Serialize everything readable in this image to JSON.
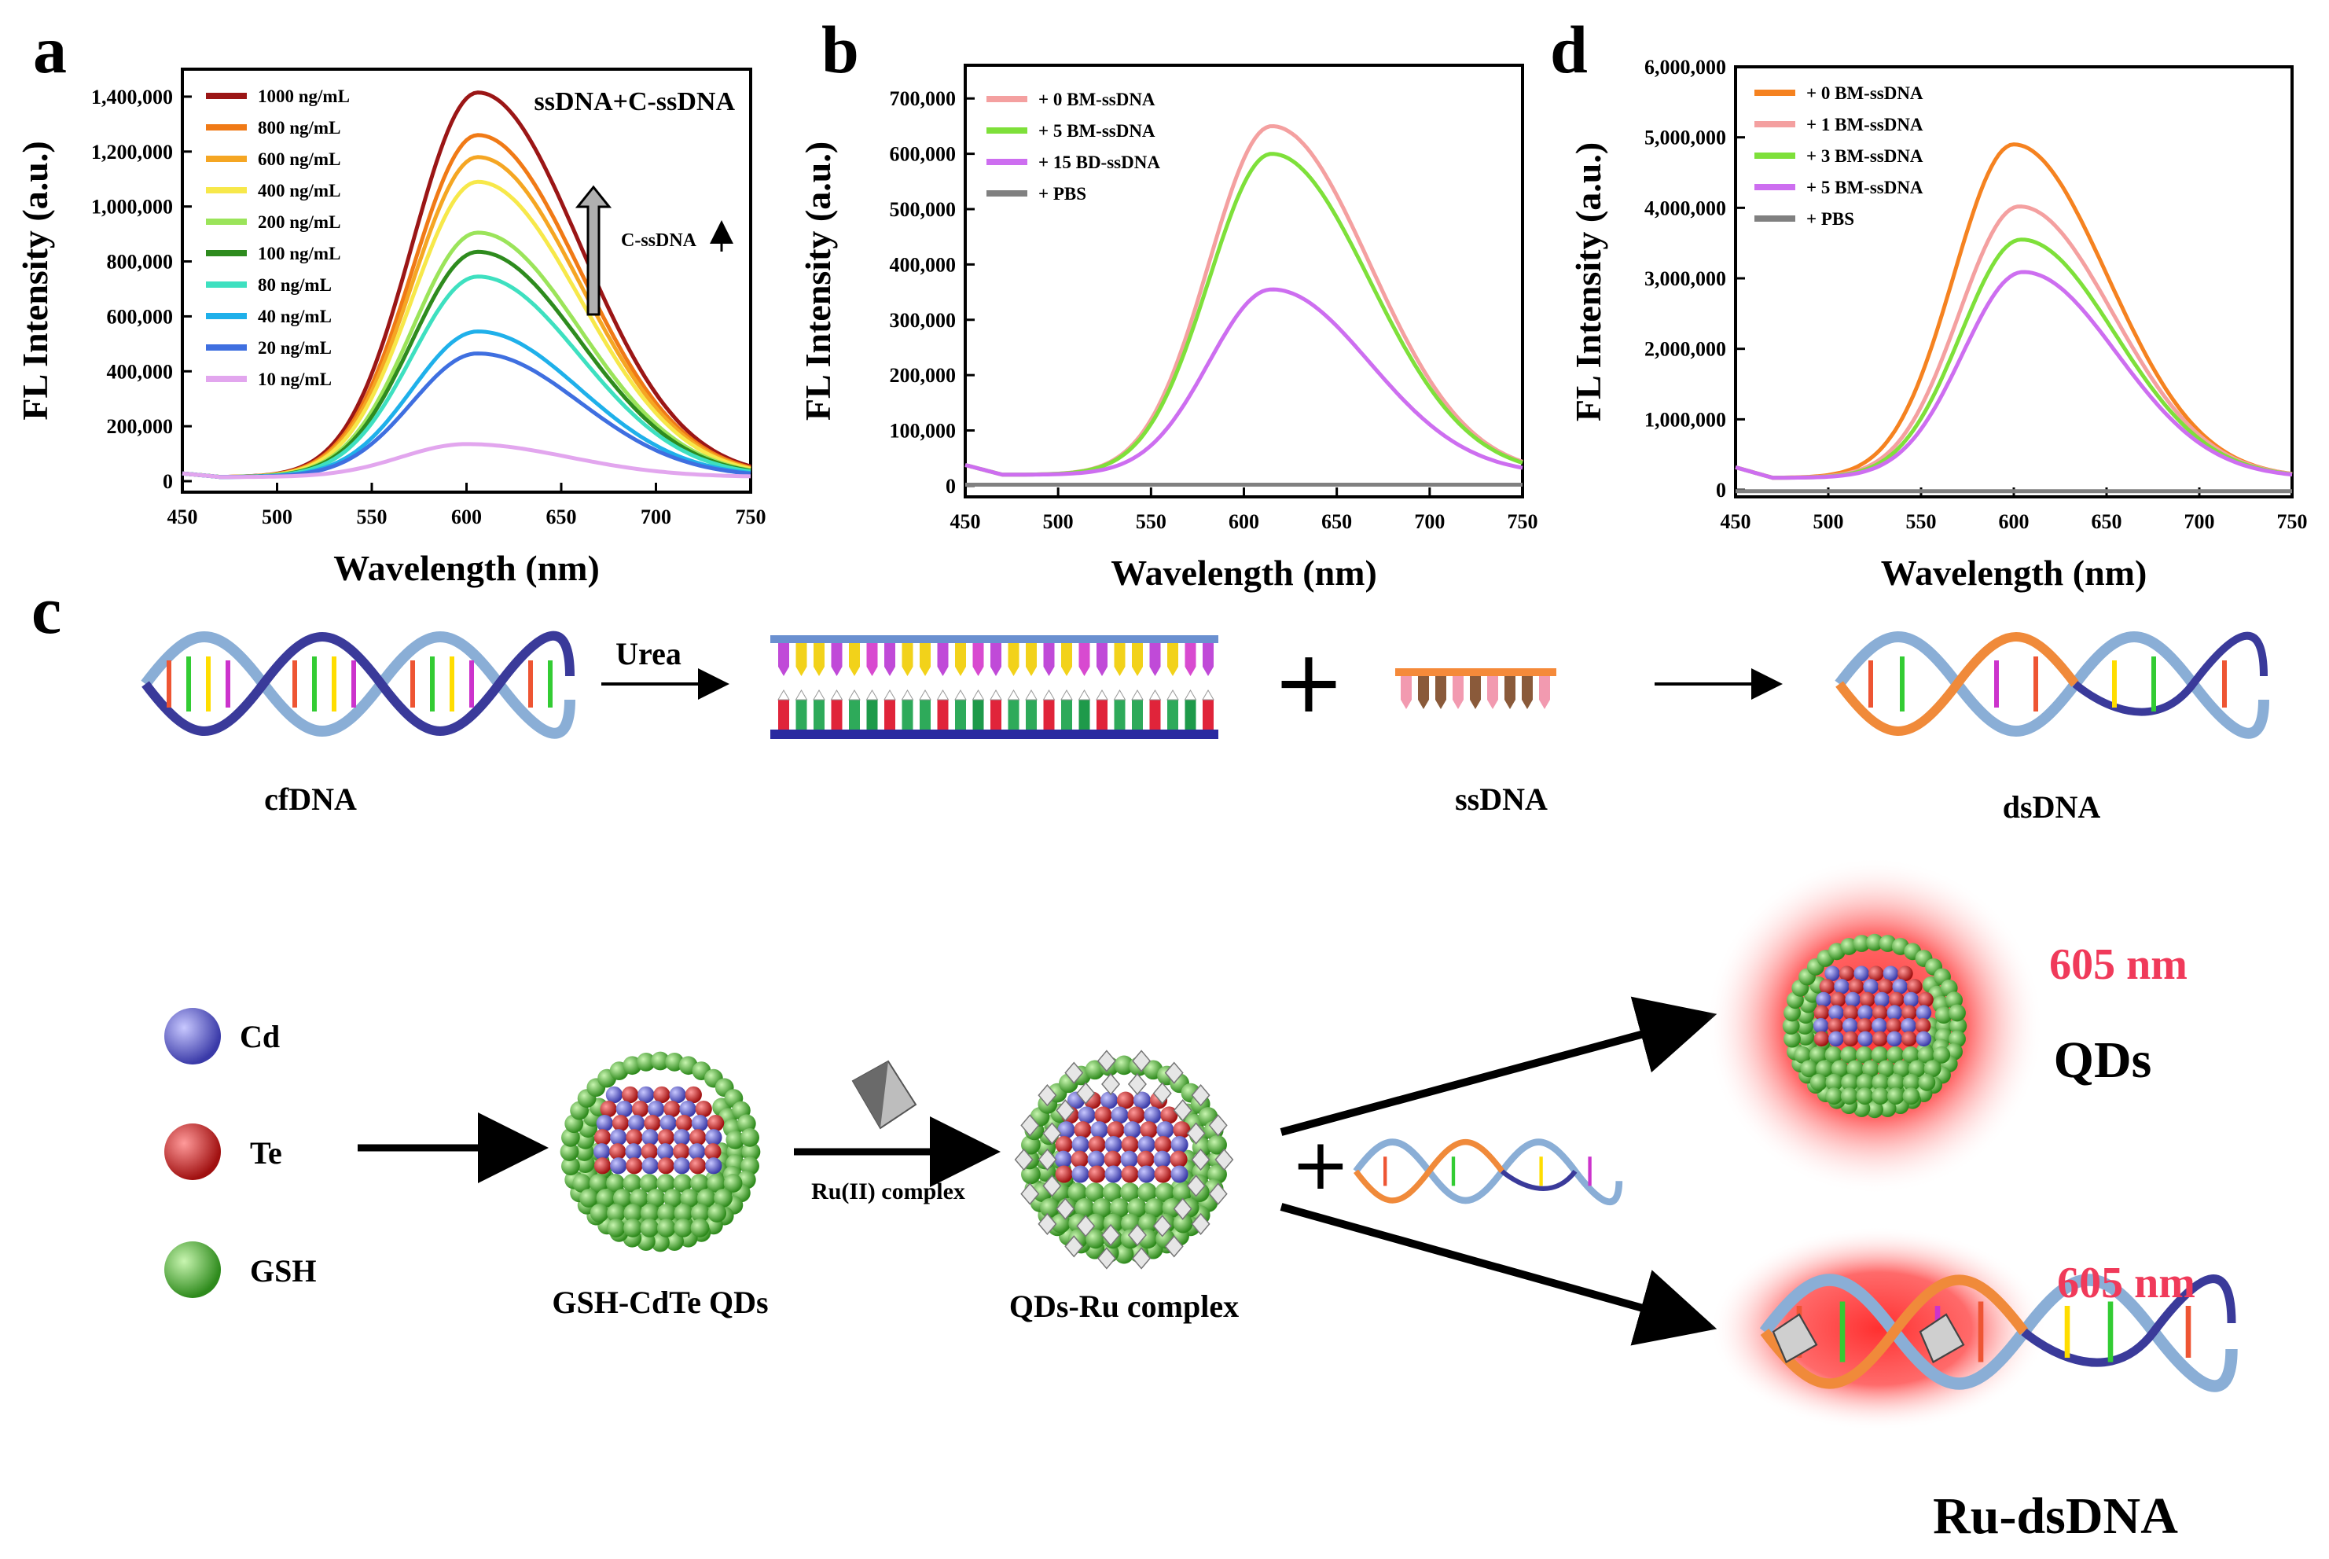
{
  "chart_data": [
    {
      "id": "a",
      "panel_label": "a",
      "type": "line",
      "xlabel": "Wavelength (nm)",
      "ylabel": "FL Intensity (a.u.)",
      "xlim": [
        450,
        750
      ],
      "ylim": [
        -40000,
        1500000
      ],
      "xticks": [
        "450",
        "500",
        "550",
        "600",
        "650",
        "700",
        "750"
      ],
      "yticks": [
        "0",
        "200,000",
        "400,000",
        "600,000",
        "800,000",
        "1,000,000",
        "1,200,000",
        "1,400,000"
      ],
      "annotations": {
        "top": "ssDNA+C-ssDNA",
        "arrow": "C-ssDNA"
      },
      "series": [
        {
          "name": "1000 ng/mL",
          "color": "#9b1616",
          "peak": 1400000,
          "center": 606
        },
        {
          "name": "800 ng/mL",
          "color": "#f07a16",
          "peak": 1245000,
          "center": 606
        },
        {
          "name": "600 ng/mL",
          "color": "#f5a623",
          "peak": 1165000,
          "center": 606
        },
        {
          "name": "400 ng/mL",
          "color": "#f7e84a",
          "peak": 1075000,
          "center": 606
        },
        {
          "name": "200 ng/mL",
          "color": "#9be45a",
          "peak": 890000,
          "center": 606
        },
        {
          "name": "100 ng/mL",
          "color": "#2e8b1e",
          "peak": 820000,
          "center": 606
        },
        {
          "name": "80 ng/mL",
          "color": "#3ee0c0",
          "peak": 730000,
          "center": 606
        },
        {
          "name": "40 ng/mL",
          "color": "#1fb0ea",
          "peak": 530000,
          "center": 606
        },
        {
          "name": "20 ng/mL",
          "color": "#3f6fe0",
          "peak": 450000,
          "center": 606
        },
        {
          "name": "10 ng/mL",
          "color": "#e2a6ee",
          "peak": 120000,
          "center": 600
        }
      ]
    },
    {
      "id": "b",
      "panel_label": "b",
      "type": "line",
      "xlabel": "Wavelength (nm)",
      "ylabel": "FL Intensity (a.u.)",
      "xlim": [
        450,
        750
      ],
      "ylim": [
        -20000,
        760000
      ],
      "xticks": [
        "450",
        "500",
        "550",
        "600",
        "650",
        "700",
        "750"
      ],
      "yticks": [
        "0",
        "100,000",
        "200,000",
        "300,000",
        "400,000",
        "500,000",
        "600,000",
        "700,000"
      ],
      "series": [
        {
          "name": "+ 0 BM-ssDNA",
          "color": "#f4a0a0",
          "peak": 630000,
          "center": 615
        },
        {
          "name": "+ 5 BM-ssDNA",
          "color": "#7ee03a",
          "peak": 580000,
          "center": 615
        },
        {
          "name": "+ 15 BD-ssDNA",
          "color": "#cd6ef0",
          "peak": 335000,
          "center": 615
        },
        {
          "name": "+ PBS",
          "color": "#808080",
          "peak": 0,
          "center": 615
        }
      ]
    },
    {
      "id": "d",
      "panel_label": "d",
      "type": "line",
      "xlabel": "Wavelength (nm)",
      "ylabel": "FL Intensity (a.u.)",
      "xlim": [
        450,
        750
      ],
      "ylim": [
        -100000,
        6000000
      ],
      "xticks": [
        "450",
        "500",
        "550",
        "600",
        "650",
        "700",
        "750"
      ],
      "yticks": [
        "0",
        "1,000,000",
        "2,000,000",
        "3,000,000",
        "4,000,000",
        "5,000,000",
        "6,000,000"
      ],
      "series": [
        {
          "name": "+ 0 BM-ssDNA",
          "color": "#f58220",
          "peak": 4730000,
          "center": 600
        },
        {
          "name": "+ 1 BM-ssDNA",
          "color": "#f4a0a0",
          "peak": 3850000,
          "center": 603
        },
        {
          "name": "+ 3 BM-ssDNA",
          "color": "#7ee03a",
          "peak": 3380000,
          "center": 604
        },
        {
          "name": "+ 5 BM-ssDNA",
          "color": "#cd6ef0",
          "peak": 2920000,
          "center": 605
        },
        {
          "name": "+ PBS",
          "color": "#808080",
          "peak": 0,
          "center": 600
        }
      ]
    }
  ],
  "schematic": {
    "panel_label": "c",
    "urea": "Urea",
    "cfdna": "cfDNA",
    "ssdna": "ssDNA",
    "dsdna": "dsDNA",
    "cd": "Cd",
    "te": "Te",
    "gsh": "GSH",
    "gsh_cdte": "GSH-CdTe QDs",
    "ru_complex": "Ru(II) complex",
    "qds_ru": "QDs-Ru complex",
    "nm1": "605 nm",
    "nm2": "605 nm",
    "qds": "QDs",
    "ru_dsdna": "Ru-dsDNA"
  },
  "colors": {
    "cd": "#6a6ae0",
    "te": "#d92a2a",
    "gsh": "#5cc23c",
    "glow": "#ff4a4a",
    "nm_text": "#f03a5a",
    "helix_blue": "#8aaed6",
    "helix_orange": "#f08a3a"
  }
}
